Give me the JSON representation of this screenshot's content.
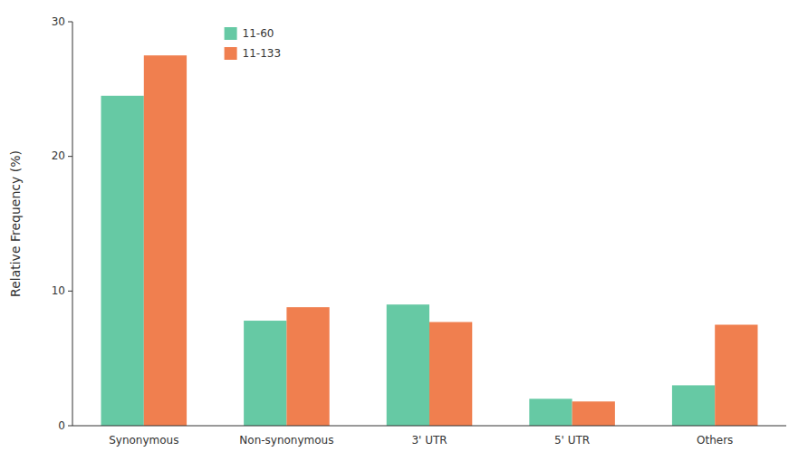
{
  "chart_data": {
    "type": "bar",
    "categories": [
      "Synonymous",
      "Non-synonymous",
      "3' UTR",
      "5' UTR",
      "Others"
    ],
    "series": [
      {
        "name": "11-60",
        "color": "#66C9A4",
        "values": [
          24.5,
          7.8,
          9.0,
          2.0,
          3.0
        ]
      },
      {
        "name": "11-133",
        "color": "#F07F4F",
        "values": [
          27.5,
          8.8,
          7.7,
          1.8,
          7.5
        ]
      }
    ],
    "ylabel": "Relative Frequency (%)",
    "ylim": [
      0,
      30
    ],
    "yticks": [
      0,
      10,
      20,
      30
    ],
    "grid": false,
    "legend": "upper left"
  }
}
